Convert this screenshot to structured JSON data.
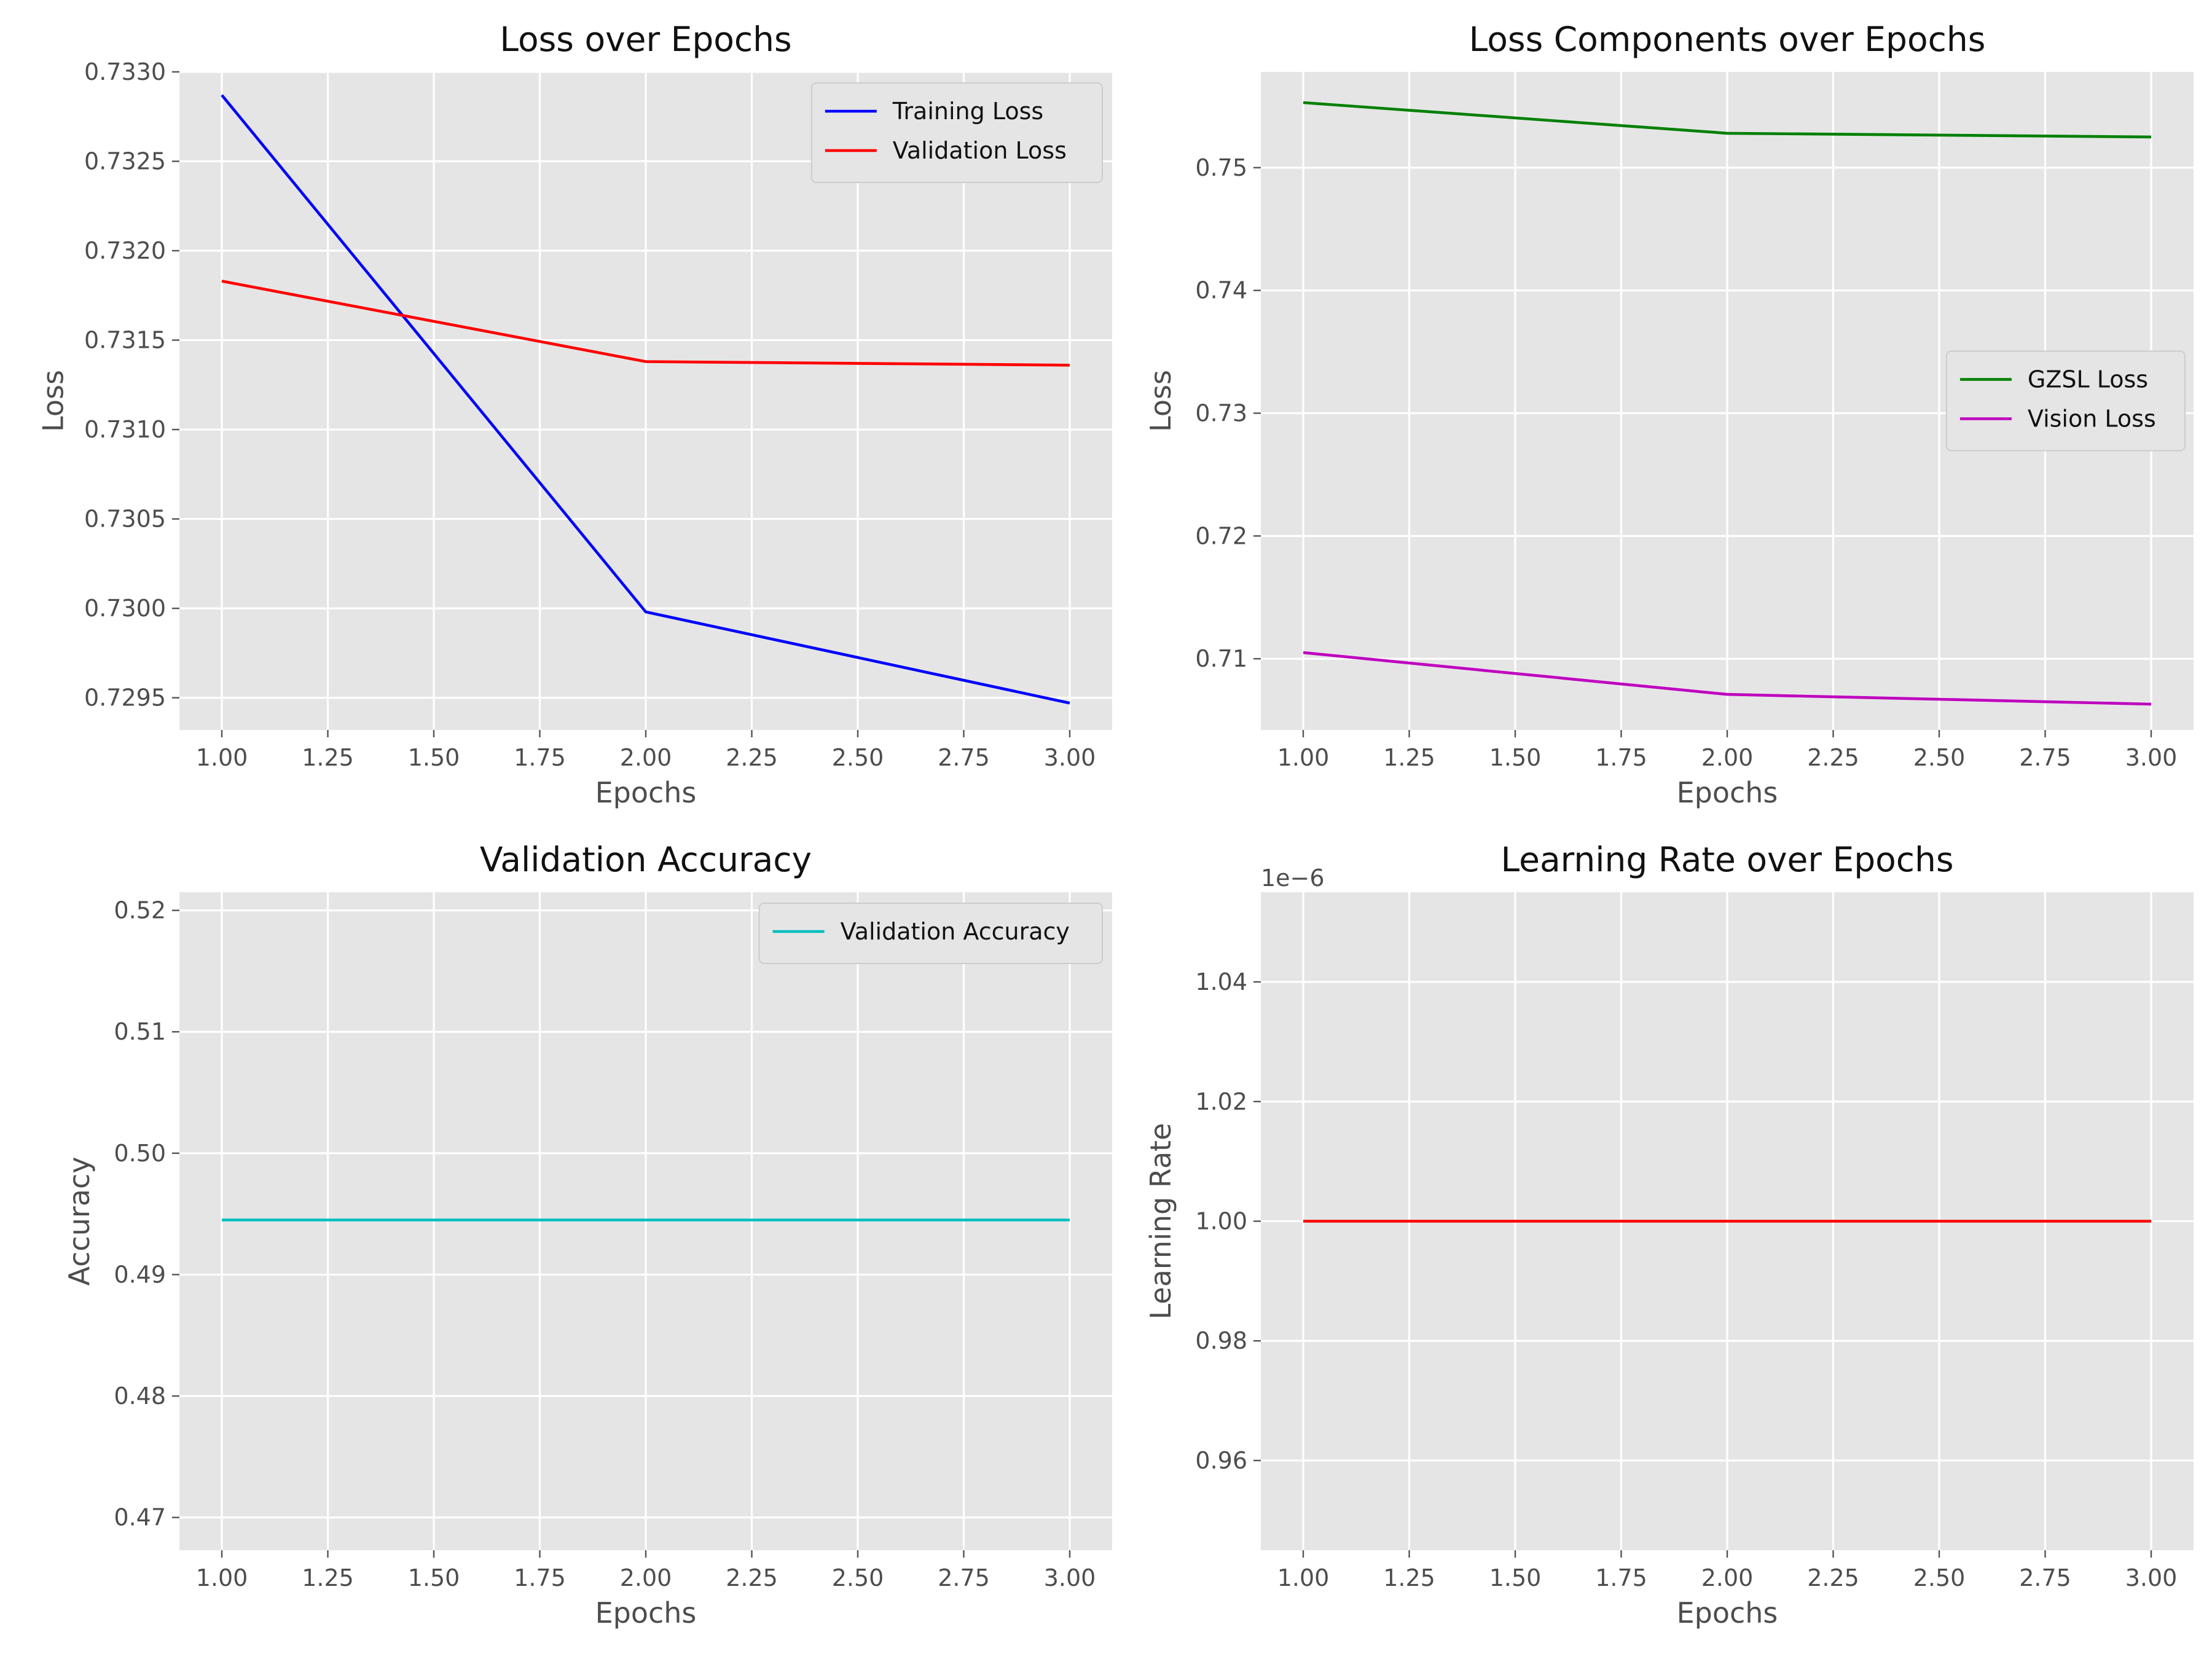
{
  "chart_data": [
    {
      "type": "line",
      "title": "Loss over Epochs",
      "xlabel": "Epochs",
      "ylabel": "Loss",
      "x": [
        1,
        2,
        3
      ],
      "xlim": [
        0.9,
        3.1
      ],
      "ylim": [
        0.72932,
        0.733
      ],
      "xticks": [
        1.0,
        1.25,
        1.5,
        1.75,
        2.0,
        2.25,
        2.5,
        2.75,
        3.0
      ],
      "xtick_labels": [
        "1.00",
        "1.25",
        "1.50",
        "1.75",
        "2.00",
        "2.25",
        "2.50",
        "2.75",
        "3.00"
      ],
      "yticks": [
        0.7295,
        0.73,
        0.7305,
        0.731,
        0.7315,
        0.732,
        0.7325,
        0.733
      ],
      "ytick_labels": [
        "0.7295",
        "0.7300",
        "0.7305",
        "0.7310",
        "0.7315",
        "0.7320",
        "0.7325",
        "0.7330"
      ],
      "grid": true,
      "legend_position": "top-right",
      "series": [
        {
          "name": "Training Loss",
          "color": "#0000ff",
          "values": [
            0.73287,
            0.72998,
            0.72947
          ]
        },
        {
          "name": "Validation Loss",
          "color": "#ff0000",
          "values": [
            0.73183,
            0.73138,
            0.73136
          ]
        }
      ]
    },
    {
      "type": "line",
      "title": "Loss Components over Epochs",
      "xlabel": "Epochs",
      "ylabel": "Loss",
      "x": [
        1,
        2,
        3
      ],
      "xlim": [
        0.9,
        3.1
      ],
      "ylim": [
        0.7042,
        0.7578
      ],
      "xticks": [
        1.0,
        1.25,
        1.5,
        1.75,
        2.0,
        2.25,
        2.5,
        2.75,
        3.0
      ],
      "xtick_labels": [
        "1.00",
        "1.25",
        "1.50",
        "1.75",
        "2.00",
        "2.25",
        "2.50",
        "2.75",
        "3.00"
      ],
      "yticks": [
        0.71,
        0.72,
        0.73,
        0.74,
        0.75
      ],
      "ytick_labels": [
        "0.71",
        "0.72",
        "0.73",
        "0.74",
        "0.75"
      ],
      "grid": true,
      "legend_position": "center-right",
      "series": [
        {
          "name": "GZSL Loss",
          "color": "#008000",
          "values": [
            0.7553,
            0.7528,
            0.7525
          ]
        },
        {
          "name": "Vision Loss",
          "color": "#bf00bf",
          "values": [
            0.7105,
            0.7071,
            0.7063
          ]
        }
      ]
    },
    {
      "type": "line",
      "title": "Validation Accuracy",
      "xlabel": "Epochs",
      "ylabel": "Accuracy",
      "x": [
        1,
        2,
        3
      ],
      "xlim": [
        0.9,
        3.1
      ],
      "ylim": [
        0.4673,
        0.5215
      ],
      "xticks": [
        1.0,
        1.25,
        1.5,
        1.75,
        2.0,
        2.25,
        2.5,
        2.75,
        3.0
      ],
      "xtick_labels": [
        "1.00",
        "1.25",
        "1.50",
        "1.75",
        "2.00",
        "2.25",
        "2.50",
        "2.75",
        "3.00"
      ],
      "yticks": [
        0.47,
        0.48,
        0.49,
        0.5,
        0.51,
        0.52
      ],
      "ytick_labels": [
        "0.47",
        "0.48",
        "0.49",
        "0.50",
        "0.51",
        "0.52"
      ],
      "grid": true,
      "legend_position": "top-right",
      "series": [
        {
          "name": "Validation Accuracy",
          "color": "#00bfbf",
          "values": [
            0.4945,
            0.4945,
            0.4945
          ]
        }
      ]
    },
    {
      "type": "line",
      "title": "Learning Rate over Epochs",
      "xlabel": "Epochs",
      "ylabel": "Learning Rate",
      "axis_offset_label": "1e−6",
      "x": [
        1,
        2,
        3
      ],
      "xlim": [
        0.9,
        3.1
      ],
      "ylim": [
        0.945,
        1.055
      ],
      "xticks": [
        1.0,
        1.25,
        1.5,
        1.75,
        2.0,
        2.25,
        2.5,
        2.75,
        3.0
      ],
      "xtick_labels": [
        "1.00",
        "1.25",
        "1.50",
        "1.75",
        "2.00",
        "2.25",
        "2.50",
        "2.75",
        "3.00"
      ],
      "yticks": [
        0.96,
        0.98,
        1.0,
        1.02,
        1.04
      ],
      "ytick_labels": [
        "0.96",
        "0.98",
        "1.00",
        "1.02",
        "1.04"
      ],
      "grid": true,
      "legend_position": "none",
      "series": [
        {
          "color": "#ff0000",
          "values": [
            1.0,
            1.0,
            1.0
          ]
        }
      ]
    }
  ]
}
